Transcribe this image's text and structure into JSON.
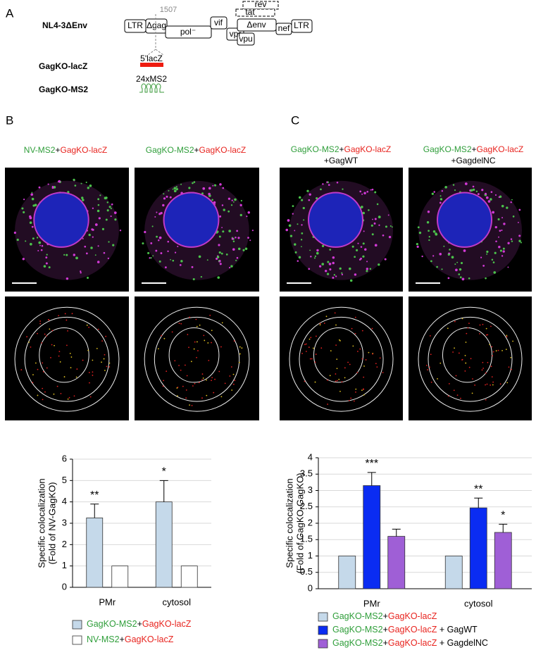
{
  "panel_a": {
    "letter": "A",
    "construct": "NL4-3ΔEnv",
    "genes": {
      "ltr5": "LTR",
      "gag": "Δgag",
      "pol": "pol⁻",
      "vif": "vif",
      "vpr": "vpr",
      "vpu": "vpu",
      "env": "Δenv",
      "rev": "rev",
      "tat": "tat",
      "nef": "nef",
      "ltr3": "LTR"
    },
    "position": "1507",
    "insert_lacz": "5'lacZ",
    "label_lacz": "GagKO-lacZ",
    "insert_ms2": "24xMS2",
    "label_ms2": "GagKO-MS2"
  },
  "panel_b": {
    "letter": "B",
    "conditions": [
      "NV-MS2+GagKO-lacZ",
      "GagKO-MS2+GagKO-lacZ"
    ]
  },
  "panel_c": {
    "letter": "C",
    "conditions": [
      {
        "line1": "GagKO-MS2+GagKO-lacZ",
        "line2": "+GagWT"
      },
      {
        "line1": "GagKO-MS2+GagKO-lacZ",
        "line2": "+GagdelNC"
      }
    ]
  },
  "chart_data": [
    {
      "type": "bar",
      "y_label": [
        "Specific colocalization",
        "(Fold of NV-GagKO)"
      ],
      "categories": [
        "PMr",
        "cytosol"
      ],
      "ylim": [
        0,
        6
      ],
      "yticks": [
        0,
        1,
        2,
        3,
        4,
        5,
        6
      ],
      "grid": true,
      "series": [
        {
          "name": "GagKO-MS2+GagKO-lacZ",
          "color": "#c5d9ea",
          "values": [
            3.25,
            4.0
          ],
          "errors": [
            0.65,
            1.0
          ],
          "annotations": [
            "**",
            "*"
          ]
        },
        {
          "name": "NV-MS2+GagKO-lacZ",
          "color": "#ffffff",
          "values": [
            1,
            1
          ]
        }
      ]
    },
    {
      "type": "bar",
      "y_label": [
        "Specific colocalization",
        "(Fold of GagKO-GagKO)"
      ],
      "categories": [
        "PMr",
        "cytosol"
      ],
      "ylim": [
        0,
        4
      ],
      "yticks": [
        0,
        0.5,
        1,
        1.5,
        2,
        2.5,
        3,
        3.5,
        4
      ],
      "grid": true,
      "series": [
        {
          "name": "GagKO-MS2+GagKO-lacZ",
          "color": "#c5d9ea",
          "values": [
            1,
            1
          ]
        },
        {
          "name": "GagKO-MS2+GagKO-lacZ + GagWT",
          "color": "#0a2cf2",
          "values": [
            3.15,
            2.47
          ],
          "errors": [
            0.4,
            0.3
          ],
          "annotations": [
            "***",
            "**"
          ]
        },
        {
          "name": "GagKO-MS2+GagKO-lacZ + GagdelNC",
          "color": "#9f5fd6",
          "values": [
            1.6,
            1.72
          ],
          "errors": [
            0.22,
            0.25
          ],
          "annotations": [
            null,
            "*"
          ]
        }
      ]
    }
  ]
}
